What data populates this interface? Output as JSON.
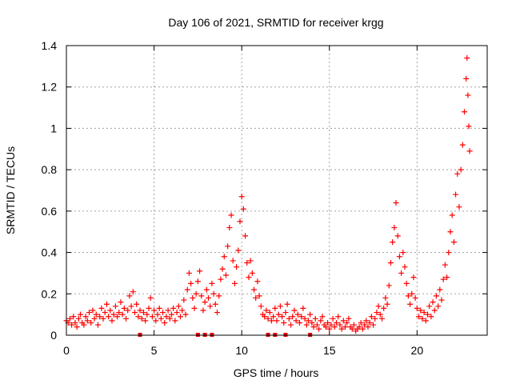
{
  "chart_data": {
    "type": "scatter",
    "title": "Day 106 of 2021, SRMTID for receiver krgg",
    "xlabel": "GPS time / hours",
    "ylabel": "SRMTID / TECUs",
    "xlim": [
      0,
      24
    ],
    "ylim": [
      0,
      1.4
    ],
    "xticks": [
      0,
      5,
      10,
      15,
      20
    ],
    "xtick_labels": [
      "0",
      "5",
      "10",
      "15",
      "20"
    ],
    "yticks": [
      0,
      0.2,
      0.4,
      0.6,
      0.8,
      1.0,
      1.2,
      1.4
    ],
    "ytick_labels": [
      "0",
      "0.2",
      "0.4",
      "0.6",
      "0.8",
      "1",
      "1.2",
      "1.4"
    ],
    "grid": true,
    "marker": "plus",
    "color": "#ff0000",
    "gap_color": "#e00000",
    "series": [
      {
        "name": "SRMTID",
        "points": [
          [
            0.0,
            0.07
          ],
          [
            0.1,
            0.06
          ],
          [
            0.2,
            0.08
          ],
          [
            0.3,
            0.05
          ],
          [
            0.4,
            0.09
          ],
          [
            0.5,
            0.06
          ],
          [
            0.6,
            0.04
          ],
          [
            0.7,
            0.08
          ],
          [
            0.8,
            0.1
          ],
          [
            0.9,
            0.06
          ],
          [
            1.0,
            0.05
          ],
          [
            1.1,
            0.09
          ],
          [
            1.2,
            0.07
          ],
          [
            1.3,
            0.11
          ],
          [
            1.4,
            0.06
          ],
          [
            1.5,
            0.12
          ],
          [
            1.6,
            0.08
          ],
          [
            1.7,
            0.1
          ],
          [
            1.8,
            0.05
          ],
          [
            1.9,
            0.09
          ],
          [
            2.0,
            0.13
          ],
          [
            2.1,
            0.08
          ],
          [
            2.2,
            0.11
          ],
          [
            2.3,
            0.15
          ],
          [
            2.4,
            0.09
          ],
          [
            2.5,
            0.12
          ],
          [
            2.6,
            0.07
          ],
          [
            2.7,
            0.1
          ],
          [
            2.8,
            0.14
          ],
          [
            2.9,
            0.09
          ],
          [
            3.0,
            0.11
          ],
          [
            3.1,
            0.16
          ],
          [
            3.2,
            0.1
          ],
          [
            3.3,
            0.13
          ],
          [
            3.4,
            0.08
          ],
          [
            3.5,
            0.12
          ],
          [
            3.6,
            0.19
          ],
          [
            3.7,
            0.14
          ],
          [
            3.8,
            0.21
          ],
          [
            3.9,
            0.11
          ],
          [
            4.0,
            0.15
          ],
          [
            4.1,
            0.09
          ],
          [
            4.2,
            0.12
          ],
          [
            4.3,
            0.08
          ],
          [
            4.4,
            0.11
          ],
          [
            4.5,
            0.07
          ],
          [
            4.6,
            0.1
          ],
          [
            4.7,
            0.13
          ],
          [
            4.8,
            0.18
          ],
          [
            4.9,
            0.09
          ],
          [
            5.0,
            0.12
          ],
          [
            5.1,
            0.07
          ],
          [
            5.2,
            0.1
          ],
          [
            5.3,
            0.13
          ],
          [
            5.4,
            0.08
          ],
          [
            5.5,
            0.11
          ],
          [
            5.6,
            0.06
          ],
          [
            5.7,
            0.09
          ],
          [
            5.8,
            0.12
          ],
          [
            5.9,
            0.08
          ],
          [
            6.0,
            0.1
          ],
          [
            6.1,
            0.13
          ],
          [
            6.2,
            0.07
          ],
          [
            6.3,
            0.11
          ],
          [
            6.4,
            0.14
          ],
          [
            6.5,
            0.09
          ],
          [
            6.6,
            0.12
          ],
          [
            6.7,
            0.17
          ],
          [
            6.8,
            0.1
          ],
          [
            6.9,
            0.22
          ],
          [
            7.0,
            0.3
          ],
          [
            7.1,
            0.25
          ],
          [
            7.2,
            0.18
          ],
          [
            7.3,
            0.13
          ],
          [
            7.4,
            0.2
          ],
          [
            7.5,
            0.26
          ],
          [
            7.6,
            0.31
          ],
          [
            7.7,
            0.19
          ],
          [
            7.8,
            0.12
          ],
          [
            7.9,
            0.16
          ],
          [
            8.0,
            0.22
          ],
          [
            8.1,
            0.18
          ],
          [
            8.2,
            0.14
          ],
          [
            8.3,
            0.25
          ],
          [
            8.4,
            0.2
          ],
          [
            8.5,
            0.15
          ],
          [
            8.6,
            0.11
          ],
          [
            8.7,
            0.19
          ],
          [
            8.8,
            0.27
          ],
          [
            8.9,
            0.32
          ],
          [
            9.0,
            0.38
          ],
          [
            9.1,
            0.29
          ],
          [
            9.2,
            0.43
          ],
          [
            9.3,
            0.52
          ],
          [
            9.4,
            0.58
          ],
          [
            9.5,
            0.36
          ],
          [
            9.6,
            0.25
          ],
          [
            9.7,
            0.33
          ],
          [
            9.8,
            0.41
          ],
          [
            9.9,
            0.55
          ],
          [
            10.0,
            0.67
          ],
          [
            10.1,
            0.61
          ],
          [
            10.2,
            0.48
          ],
          [
            10.3,
            0.35
          ],
          [
            10.4,
            0.28
          ],
          [
            10.5,
            0.36
          ],
          [
            10.6,
            0.3
          ],
          [
            10.7,
            0.22
          ],
          [
            10.8,
            0.18
          ],
          [
            10.9,
            0.26
          ],
          [
            11.0,
            0.19
          ],
          [
            11.1,
            0.14
          ],
          [
            11.2,
            0.1
          ],
          [
            11.3,
            0.09
          ],
          [
            11.4,
            0.12
          ],
          [
            11.5,
            0.08
          ],
          [
            11.6,
            0.11
          ],
          [
            11.7,
            0.07
          ],
          [
            11.8,
            0.09
          ],
          [
            11.9,
            0.13
          ],
          [
            12.0,
            0.07
          ],
          [
            12.1,
            0.1
          ],
          [
            12.2,
            0.14
          ],
          [
            12.3,
            0.09
          ],
          [
            12.4,
            0.06
          ],
          [
            12.5,
            0.11
          ],
          [
            12.6,
            0.15
          ],
          [
            12.7,
            0.08
          ],
          [
            12.8,
            0.05
          ],
          [
            12.9,
            0.09
          ],
          [
            13.0,
            0.12
          ],
          [
            13.1,
            0.07
          ],
          [
            13.2,
            0.1
          ],
          [
            13.3,
            0.06
          ],
          [
            13.4,
            0.09
          ],
          [
            13.5,
            0.13
          ],
          [
            13.6,
            0.08
          ],
          [
            13.7,
            0.05
          ],
          [
            13.8,
            0.07
          ],
          [
            13.9,
            0.1
          ],
          [
            14.0,
            0.06
          ],
          [
            14.1,
            0.04
          ],
          [
            14.2,
            0.08
          ],
          [
            14.3,
            0.05
          ],
          [
            14.4,
            0.03
          ],
          [
            14.5,
            0.07
          ],
          [
            14.6,
            0.09
          ],
          [
            14.7,
            0.05
          ],
          [
            14.8,
            0.04
          ],
          [
            14.9,
            0.06
          ],
          [
            15.0,
            0.03
          ],
          [
            15.1,
            0.05
          ],
          [
            15.2,
            0.08
          ],
          [
            15.3,
            0.04
          ],
          [
            15.4,
            0.06
          ],
          [
            15.5,
            0.09
          ],
          [
            15.6,
            0.05
          ],
          [
            15.7,
            0.03
          ],
          [
            15.8,
            0.07
          ],
          [
            15.9,
            0.04
          ],
          [
            16.0,
            0.06
          ],
          [
            16.1,
            0.08
          ],
          [
            16.2,
            0.04
          ],
          [
            16.3,
            0.03
          ],
          [
            16.4,
            0.05
          ],
          [
            16.5,
            0.02
          ],
          [
            16.6,
            0.03
          ],
          [
            16.7,
            0.04
          ],
          [
            16.8,
            0.06
          ],
          [
            16.9,
            0.03
          ],
          [
            17.0,
            0.05
          ],
          [
            17.1,
            0.07
          ],
          [
            17.2,
            0.04
          ],
          [
            17.3,
            0.06
          ],
          [
            17.4,
            0.09
          ],
          [
            17.5,
            0.05
          ],
          [
            17.6,
            0.08
          ],
          [
            17.7,
            0.11
          ],
          [
            17.8,
            0.14
          ],
          [
            17.9,
            0.1
          ],
          [
            18.0,
            0.08
          ],
          [
            18.1,
            0.13
          ],
          [
            18.2,
            0.18
          ],
          [
            18.3,
            0.15
          ],
          [
            18.4,
            0.24
          ],
          [
            18.5,
            0.35
          ],
          [
            18.6,
            0.45
          ],
          [
            18.7,
            0.52
          ],
          [
            18.8,
            0.64
          ],
          [
            18.9,
            0.48
          ],
          [
            19.0,
            0.38
          ],
          [
            19.1,
            0.3
          ],
          [
            19.2,
            0.4
          ],
          [
            19.3,
            0.33
          ],
          [
            19.4,
            0.25
          ],
          [
            19.5,
            0.19
          ],
          [
            19.6,
            0.15
          ],
          [
            19.7,
            0.2
          ],
          [
            19.8,
            0.28
          ],
          [
            19.9,
            0.18
          ],
          [
            20.0,
            0.13
          ],
          [
            20.1,
            0.09
          ],
          [
            20.2,
            0.12
          ],
          [
            20.3,
            0.08
          ],
          [
            20.4,
            0.11
          ],
          [
            20.5,
            0.07
          ],
          [
            20.6,
            0.1
          ],
          [
            20.7,
            0.14
          ],
          [
            20.8,
            0.09
          ],
          [
            20.9,
            0.16
          ],
          [
            21.0,
            0.12
          ],
          [
            21.1,
            0.19
          ],
          [
            21.2,
            0.14
          ],
          [
            21.3,
            0.22
          ],
          [
            21.4,
            0.17
          ],
          [
            21.5,
            0.27
          ],
          [
            21.6,
            0.34
          ],
          [
            21.7,
            0.28
          ],
          [
            21.8,
            0.4
          ],
          [
            21.9,
            0.5
          ],
          [
            22.0,
            0.58
          ],
          [
            22.1,
            0.45
          ],
          [
            22.2,
            0.68
          ],
          [
            22.3,
            0.78
          ],
          [
            22.4,
            0.62
          ],
          [
            22.5,
            0.8
          ],
          [
            22.6,
            0.92
          ],
          [
            22.7,
            1.08
          ],
          [
            22.8,
            1.24
          ],
          [
            22.85,
            1.34
          ],
          [
            22.9,
            1.16
          ],
          [
            22.95,
            1.01
          ],
          [
            23.0,
            0.89
          ]
        ]
      }
    ],
    "gap_markers_x": [
      4.2,
      7.5,
      7.9,
      8.3,
      11.5,
      11.9,
      12.5,
      13.9
    ]
  }
}
